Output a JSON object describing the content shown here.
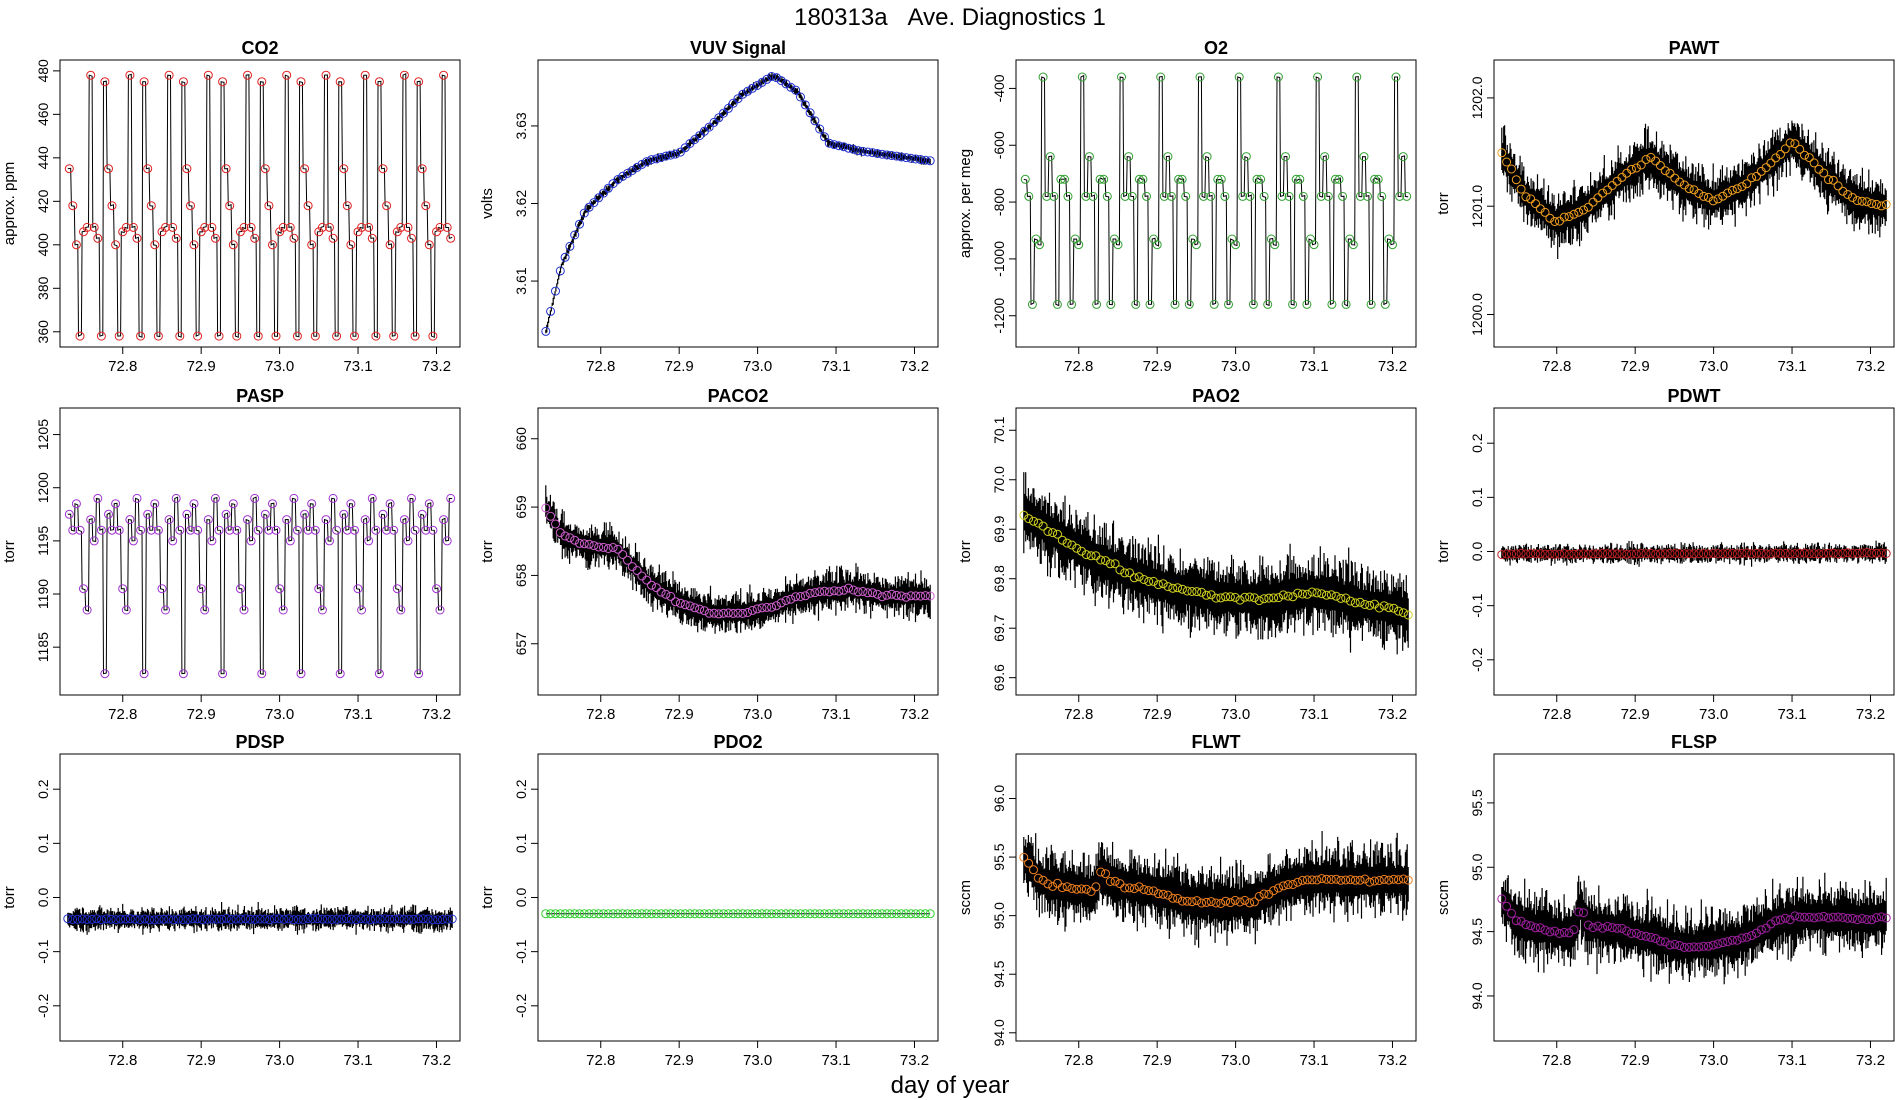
{
  "figure": {
    "title_id": "180313a",
    "title_text": "Ave. Diagnostics 1",
    "xlabel": "day of year"
  },
  "chart_data": [
    {
      "type": "line",
      "title": "CO2",
      "ylabel": "approx. ppm",
      "xlim": [
        72.72,
        73.23
      ],
      "ylim": [
        353,
        485
      ],
      "yticks": [
        360,
        380,
        400,
        420,
        440,
        460,
        480
      ],
      "ytick_labels": [
        "360",
        "380",
        "400",
        "420",
        "440",
        "460",
        "480"
      ],
      "xticks": [
        72.8,
        72.9,
        73.0,
        73.1,
        73.2
      ],
      "xtick_labels": [
        "72.8",
        "72.9",
        "73.0",
        "73.1",
        "73.2"
      ],
      "marker_color": "#e02020",
      "series": [
        {
          "name": "CO2",
          "pattern": "cycle",
          "levels": [
            435,
            418,
            400,
            358,
            406,
            408,
            478,
            408,
            403,
            358,
            475
          ],
          "period": 0.05,
          "start": 72.73,
          "end": 73.22
        }
      ]
    },
    {
      "type": "line",
      "title": "VUV Signal",
      "ylabel": "volts",
      "xlim": [
        72.72,
        73.23
      ],
      "ylim": [
        3.6015,
        3.6385
      ],
      "yticks": [
        3.61,
        3.62,
        3.63
      ],
      "ytick_labels": [
        "3.61",
        "3.62",
        "3.63"
      ],
      "xticks": [
        72.8,
        72.9,
        73.0,
        73.1,
        73.2
      ],
      "xtick_labels": [
        "72.8",
        "72.9",
        "73.0",
        "73.1",
        "73.2"
      ],
      "marker_color": "#2030d0",
      "series": [
        {
          "name": "VUV",
          "pattern": "trend",
          "x": [
            72.73,
            72.75,
            72.78,
            72.82,
            72.86,
            72.9,
            72.94,
            72.98,
            73.02,
            73.05,
            73.09,
            73.13,
            73.17,
            73.22
          ],
          "y": [
            3.6035,
            3.612,
            3.619,
            3.623,
            3.6255,
            3.6265,
            3.63,
            3.634,
            3.6365,
            3.6345,
            3.6278,
            3.6268,
            3.6262,
            3.6255
          ],
          "noise": 0.0006
        }
      ]
    },
    {
      "type": "line",
      "title": "O2",
      "ylabel": "approx. per meg",
      "xlim": [
        72.72,
        73.23
      ],
      "ylim": [
        -1310,
        -300
      ],
      "yticks": [
        -1200,
        -1000,
        -800,
        -600,
        -400
      ],
      "ytick_labels": [
        "-1200",
        "-1000",
        "-800",
        "-600",
        "-400"
      ],
      "xticks": [
        72.8,
        72.9,
        73.0,
        73.1,
        73.2
      ],
      "xtick_labels": [
        "72.8",
        "72.9",
        "73.0",
        "73.1",
        "73.2"
      ],
      "marker_color": "#30a030",
      "series": [
        {
          "name": "O2",
          "pattern": "cycle",
          "levels": [
            -720,
            -780,
            -1160,
            -930,
            -950,
            -360,
            -780,
            -640,
            -780,
            -1160,
            -720
          ],
          "period": 0.05,
          "start": 72.73,
          "end": 73.22
        }
      ]
    },
    {
      "type": "line",
      "title": "PAWT",
      "ylabel": "torr",
      "xlim": [
        72.72,
        73.23
      ],
      "ylim": [
        1199.7,
        1202.35
      ],
      "yticks": [
        1200.0,
        1201.0,
        1202.0
      ],
      "ytick_labels": [
        "1200.0",
        "1201.0",
        "1202.0"
      ],
      "xticks": [
        72.8,
        72.9,
        73.0,
        73.1,
        73.2
      ],
      "xtick_labels": [
        "72.8",
        "72.9",
        "73.0",
        "73.1",
        "73.2"
      ],
      "marker_color": "#f0a020",
      "series": [
        {
          "name": "PAWT",
          "pattern": "trend",
          "x": [
            72.73,
            72.76,
            72.8,
            72.84,
            72.88,
            72.92,
            72.96,
            73.0,
            73.04,
            73.08,
            73.1,
            73.14,
            73.18,
            73.22
          ],
          "y": [
            1201.5,
            1201.1,
            1200.85,
            1201.0,
            1201.25,
            1201.45,
            1201.2,
            1201.05,
            1201.2,
            1201.45,
            1201.6,
            1201.3,
            1201.05,
            1201.0
          ],
          "noise": 0.3
        }
      ]
    },
    {
      "type": "line",
      "title": "PASP",
      "ylabel": "torr",
      "xlim": [
        72.72,
        73.23
      ],
      "ylim": [
        1180.5,
        1207.5
      ],
      "yticks": [
        1185,
        1190,
        1195,
        1200,
        1205
      ],
      "ytick_labels": [
        "1185",
        "1190",
        "1195",
        "1200",
        "1205"
      ],
      "xticks": [
        72.8,
        72.9,
        73.0,
        73.1,
        73.2
      ],
      "xtick_labels": [
        "72.8",
        "72.9",
        "73.0",
        "73.1",
        "73.2"
      ],
      "marker_color": "#a030d0",
      "series": [
        {
          "name": "PASP",
          "pattern": "cycle",
          "levels": [
            1197.5,
            1196,
            1198.5,
            1196,
            1190.5,
            1188.5,
            1197,
            1195,
            1199,
            1196,
            1182.5
          ],
          "period": 0.05,
          "start": 72.73,
          "end": 73.22
        }
      ]
    },
    {
      "type": "line",
      "title": "PACO2",
      "ylabel": "torr",
      "xlim": [
        72.72,
        73.23
      ],
      "ylim": [
        656.25,
        660.45
      ],
      "yticks": [
        657,
        658,
        659,
        660
      ],
      "ytick_labels": [
        "657",
        "658",
        "659",
        "660"
      ],
      "xticks": [
        72.8,
        72.9,
        73.0,
        73.1,
        73.2
      ],
      "xtick_labels": [
        "72.8",
        "72.9",
        "73.0",
        "73.1",
        "73.2"
      ],
      "marker_color": "#d060d0",
      "series": [
        {
          "name": "PACO2",
          "pattern": "trend",
          "x": [
            72.73,
            72.75,
            72.78,
            72.82,
            72.86,
            72.9,
            72.94,
            72.98,
            73.02,
            73.05,
            73.08,
            73.12,
            73.16,
            73.22
          ],
          "y": [
            659.0,
            658.6,
            658.45,
            658.4,
            657.9,
            657.6,
            657.45,
            657.45,
            657.55,
            657.7,
            657.75,
            657.8,
            657.7,
            657.7
          ],
          "noise": 0.35
        }
      ]
    },
    {
      "type": "line",
      "title": "PAO2",
      "ylabel": "torr",
      "xlim": [
        72.72,
        73.23
      ],
      "ylim": [
        69.565,
        70.145
      ],
      "yticks": [
        69.6,
        69.7,
        69.8,
        69.9,
        70.0,
        70.1
      ],
      "ytick_labels": [
        "69.6",
        "69.7",
        "69.8",
        "69.9",
        "70.0",
        "70.1"
      ],
      "xticks": [
        72.8,
        72.9,
        73.0,
        73.1,
        73.2
      ],
      "xtick_labels": [
        "72.8",
        "72.9",
        "73.0",
        "73.1",
        "73.2"
      ],
      "marker_color": "#d0d020",
      "series": [
        {
          "name": "PAO2",
          "pattern": "trend",
          "x": [
            72.73,
            72.76,
            72.8,
            72.84,
            72.88,
            72.92,
            72.96,
            73.0,
            73.04,
            73.08,
            73.12,
            73.16,
            73.2,
            73.22
          ],
          "y": [
            69.93,
            69.9,
            69.86,
            69.83,
            69.8,
            69.78,
            69.77,
            69.76,
            69.76,
            69.77,
            69.77,
            69.75,
            69.74,
            69.73
          ],
          "noise": 0.09
        }
      ]
    },
    {
      "type": "line",
      "title": "PDWT",
      "ylabel": "torr",
      "xlim": [
        72.72,
        73.23
      ],
      "ylim": [
        -0.265,
        0.265
      ],
      "yticks": [
        -0.2,
        -0.1,
        0.0,
        0.1,
        0.2
      ],
      "ytick_labels": [
        "-0.2",
        "-0.1",
        "0.0",
        "0.1",
        "0.2"
      ],
      "xticks": [
        72.8,
        72.9,
        73.0,
        73.1,
        73.2
      ],
      "xtick_labels": [
        "72.8",
        "72.9",
        "73.0",
        "73.1",
        "73.2"
      ],
      "marker_color": "#c02020",
      "series": [
        {
          "name": "PDWT",
          "pattern": "trend",
          "x": [
            72.73,
            73.22
          ],
          "y": [
            -0.005,
            -0.003
          ],
          "noise": 0.02
        }
      ]
    },
    {
      "type": "line",
      "title": "PDSP",
      "ylabel": "torr",
      "xlim": [
        72.72,
        73.23
      ],
      "ylim": [
        -0.265,
        0.265
      ],
      "yticks": [
        -0.2,
        -0.1,
        0.0,
        0.1,
        0.2
      ],
      "ytick_labels": [
        "-0.2",
        "-0.1",
        "0.0",
        "0.1",
        "0.2"
      ],
      "xticks": [
        72.8,
        72.9,
        73.0,
        73.1,
        73.2
      ],
      "xtick_labels": [
        "72.8",
        "72.9",
        "73.0",
        "73.1",
        "73.2"
      ],
      "marker_color": "#2030d0",
      "series": [
        {
          "name": "PDSP",
          "pattern": "trend",
          "x": [
            72.73,
            73.22
          ],
          "y": [
            -0.04,
            -0.04
          ],
          "noise": 0.025
        }
      ]
    },
    {
      "type": "line",
      "title": "PDO2",
      "ylabel": "torr",
      "xlim": [
        72.72,
        73.23
      ],
      "ylim": [
        -0.265,
        0.265
      ],
      "yticks": [
        -0.2,
        -0.1,
        0.0,
        0.1,
        0.2
      ],
      "ytick_labels": [
        "-0.2",
        "-0.1",
        "0.0",
        "0.1",
        "0.2"
      ],
      "xticks": [
        72.8,
        72.9,
        73.0,
        73.1,
        73.2
      ],
      "xtick_labels": [
        "72.8",
        "72.9",
        "73.0",
        "73.1",
        "73.2"
      ],
      "marker_color": "#30d030",
      "series": [
        {
          "name": "PDO2",
          "pattern": "trend",
          "x": [
            72.73,
            73.22
          ],
          "y": [
            -0.03,
            -0.03
          ],
          "noise": 0.0
        }
      ]
    },
    {
      "type": "line",
      "title": "FLWT",
      "ylabel": "sccm",
      "xlim": [
        72.72,
        73.23
      ],
      "ylim": [
        93.93,
        96.38
      ],
      "yticks": [
        94.0,
        94.5,
        95.0,
        95.5,
        96.0
      ],
      "ytick_labels": [
        "94.0",
        "94.5",
        "95.0",
        "95.5",
        "96.0"
      ],
      "xticks": [
        72.8,
        72.9,
        73.0,
        73.1,
        73.2
      ],
      "xtick_labels": [
        "72.8",
        "72.9",
        "73.0",
        "73.1",
        "73.2"
      ],
      "marker_color": "#f08020",
      "series": [
        {
          "name": "FLWT",
          "pattern": "trend",
          "x": [
            72.73,
            72.75,
            72.78,
            72.82,
            72.83,
            72.84,
            72.86,
            72.9,
            72.94,
            72.98,
            73.02,
            73.06,
            73.1,
            73.15,
            73.22
          ],
          "y": [
            95.5,
            95.3,
            95.25,
            95.2,
            95.4,
            95.3,
            95.25,
            95.2,
            95.12,
            95.12,
            95.12,
            95.25,
            95.32,
            95.3,
            95.3
          ],
          "noise": 0.35
        }
      ]
    },
    {
      "type": "line",
      "title": "FLSP",
      "ylabel": "sccm",
      "xlim": [
        72.72,
        73.23
      ],
      "ylim": [
        93.65,
        95.88
      ],
      "yticks": [
        94.0,
        94.5,
        95.0,
        95.5
      ],
      "ytick_labels": [
        "94.0",
        "94.5",
        "95.0",
        "95.5"
      ],
      "xticks": [
        72.8,
        72.9,
        73.0,
        73.1,
        73.2
      ],
      "xtick_labels": [
        "72.8",
        "72.9",
        "73.0",
        "73.1",
        "73.2"
      ],
      "marker_color": "#a020a0",
      "series": [
        {
          "name": "FLSP",
          "pattern": "trend",
          "x": [
            72.73,
            72.75,
            72.78,
            72.82,
            72.83,
            72.84,
            72.88,
            72.92,
            72.96,
            73.0,
            73.04,
            73.08,
            73.12,
            73.18,
            73.22
          ],
          "y": [
            94.75,
            94.58,
            94.52,
            94.48,
            94.7,
            94.55,
            94.52,
            94.45,
            94.38,
            94.4,
            94.45,
            94.58,
            94.62,
            94.6,
            94.6
          ],
          "noise": 0.3
        }
      ]
    }
  ]
}
